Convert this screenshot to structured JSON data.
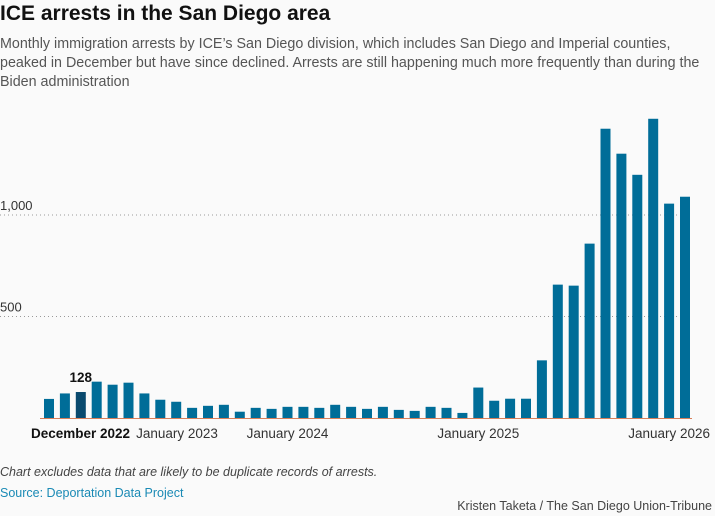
{
  "title": "ICE arrests in the San Diego area",
  "subtitle": "Monthly immigration arrests by ICE’s San Diego division, which includes San Diego and Imperial counties, peaked in December but have since declined. Arrests are still happening much more frequently than during the Biden administration",
  "note": "Chart excludes data that are likely to be duplicate records of arrests.",
  "source": "Source: Deportation Data Project",
  "credit": "Kristen Taketa / The San Diego Union-Tribune",
  "colors": {
    "bar": "#006d98",
    "highlight": "#0a4a6e",
    "axis": "#d9805a",
    "grid": "#999999"
  },
  "chart_data": {
    "type": "bar",
    "title": "ICE arrests in the San Diego area",
    "xlabel": "",
    "ylabel": "",
    "ylim": [
      0,
      1500
    ],
    "grid": true,
    "yticks": [
      {
        "value": 500,
        "label": "500"
      },
      {
        "value": 1000,
        "label": "1,000"
      }
    ],
    "xticks": [
      {
        "index": 3,
        "label": "January 2023"
      },
      {
        "index": 15,
        "label": "January 2024"
      },
      {
        "index": 27,
        "label": "January 2025"
      },
      {
        "index": 39,
        "label": "January 2026"
      }
    ],
    "highlight": {
      "index": 2,
      "label": "December 2022",
      "value_label": "128"
    },
    "categories": [
      "Oct 2022",
      "Nov 2022",
      "Dec 2022",
      "Jan 2023",
      "Feb 2023",
      "Mar 2023",
      "Apr 2023",
      "May 2023",
      "Jun 2023",
      "Jul 2023",
      "Aug 2023",
      "Sep 2023",
      "Oct 2023",
      "Nov 2023",
      "Dec 2023",
      "Jan 2024",
      "Feb 2024",
      "Mar 2024",
      "Apr 2024",
      "May 2024",
      "Jun 2024",
      "Jul 2024",
      "Aug 2024",
      "Sep 2024",
      "Oct 2024",
      "Nov 2024",
      "Dec 2024",
      "Jan 2025",
      "Feb 2025",
      "Mar 2025",
      "Apr 2025",
      "May 2025",
      "Jun 2025",
      "Jul 2025",
      "Aug 2025",
      "Sep 2025",
      "Oct 2025",
      "Nov 2025",
      "Dec 2025",
      "Jan 2026",
      "Feb 2026"
    ],
    "values": [
      94,
      121,
      128,
      179,
      164,
      174,
      121,
      90,
      80,
      50,
      60,
      65,
      31,
      50,
      45,
      55,
      55,
      50,
      65,
      55,
      45,
      55,
      40,
      35,
      55,
      50,
      25,
      150,
      85,
      95,
      95,
      284,
      657,
      652,
      859,
      1425,
      1302,
      1198,
      1474,
      1056,
      1090
    ]
  }
}
